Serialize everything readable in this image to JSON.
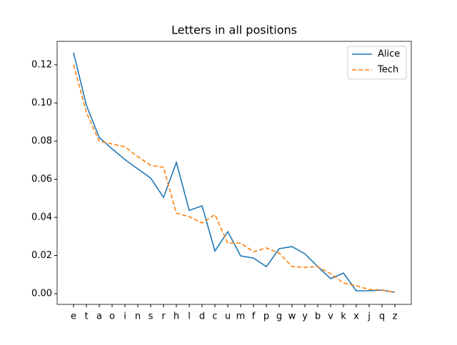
{
  "chart_data": {
    "type": "line",
    "title": "Letters in all positions",
    "categories": [
      "e",
      "t",
      "a",
      "o",
      "i",
      "n",
      "s",
      "r",
      "h",
      "l",
      "d",
      "c",
      "u",
      "m",
      "f",
      "p",
      "g",
      "w",
      "y",
      "b",
      "v",
      "k",
      "x",
      "j",
      "q",
      "z"
    ],
    "series": [
      {
        "name": "Alice",
        "color": "#1f77b4",
        "dash": "solid",
        "values": [
          0.1264,
          0.0987,
          0.0819,
          0.0759,
          0.0703,
          0.0654,
          0.0606,
          0.0505,
          0.0688,
          0.0437,
          0.046,
          0.0224,
          0.0325,
          0.0198,
          0.0187,
          0.0142,
          0.0236,
          0.0247,
          0.0209,
          0.0142,
          0.0079,
          0.0108,
          0.0015,
          0.0015,
          0.0019,
          0.0007
        ]
      },
      {
        "name": "Tech",
        "color": "#ff7f0e",
        "dash": "dashed",
        "values": [
          0.12,
          0.095,
          0.08,
          0.0785,
          0.077,
          0.0718,
          0.0673,
          0.0662,
          0.0422,
          0.0404,
          0.037,
          0.0415,
          0.0265,
          0.0265,
          0.022,
          0.024,
          0.0213,
          0.0142,
          0.0138,
          0.0142,
          0.0105,
          0.0056,
          0.0041,
          0.0022,
          0.0019,
          0.0007
        ]
      }
    ],
    "ylim": [
      -0.0056,
      0.1323
    ],
    "yticks": [
      {
        "value": 0,
        "label": "0.00"
      },
      {
        "value": 0.02,
        "label": "0.02"
      },
      {
        "value": 0.04,
        "label": "0.04"
      },
      {
        "value": 0.06,
        "label": "0.06"
      },
      {
        "value": 0.08,
        "label": "0.08"
      },
      {
        "value": 0.1,
        "label": "0.10"
      },
      {
        "value": 0.12,
        "label": "0.12"
      }
    ],
    "legend": "upper right"
  }
}
